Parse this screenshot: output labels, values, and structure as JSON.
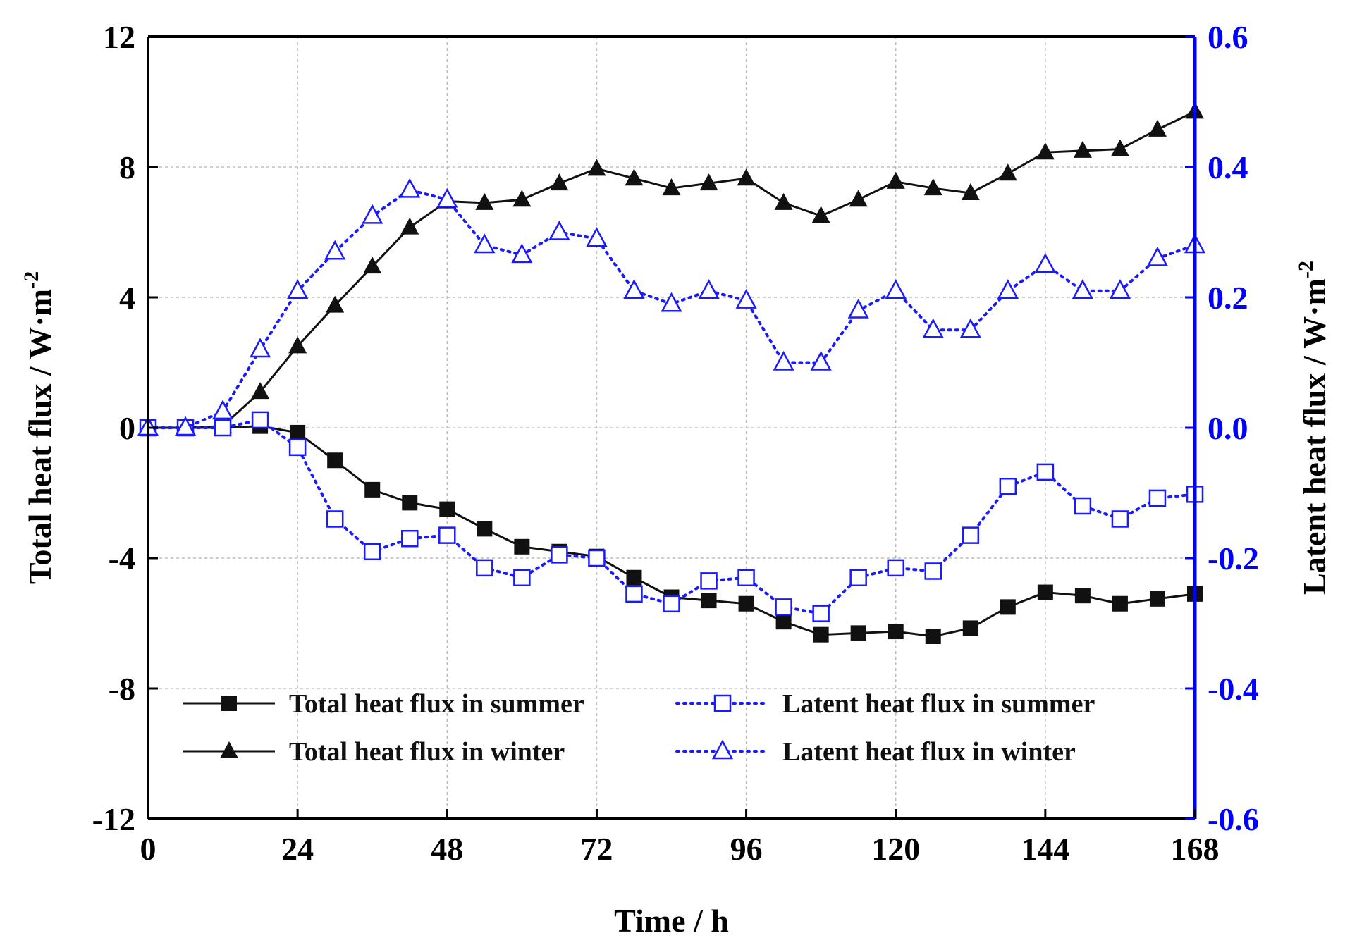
{
  "chart_data": {
    "type": "line",
    "xlabel": "Time / h",
    "ylabel_left": "Total heat flux / W·m",
    "ylabel_left_sup": "-2",
    "ylabel_right": "Latent heat flux / W·m",
    "ylabel_right_sup": "-2",
    "xlim": [
      0,
      168
    ],
    "ylim_left": [
      -12,
      12
    ],
    "ylim_right": [
      -0.6,
      0.6
    ],
    "x_ticks": [
      "0",
      "24",
      "48",
      "72",
      "96",
      "120",
      "144",
      "168"
    ],
    "y_ticks_left": [
      "12",
      "8",
      "4",
      "0",
      "-4",
      "-8",
      "-12"
    ],
    "y_ticks_right": [
      "0.6",
      "0.4",
      "0.2",
      "0.0",
      "-0.2",
      "-0.4",
      "-0.6"
    ],
    "grid": true,
    "legend_position": "bottom",
    "colors": {
      "total": "#111111",
      "latent": "#1a1aff",
      "right_axis": "#0000ff"
    },
    "series": [
      {
        "name": "Total heat flux in summer",
        "axis": "left",
        "marker": "filled-square",
        "style": "solid",
        "x": [
          0,
          6,
          12,
          18,
          24,
          30,
          36,
          42,
          48,
          54,
          60,
          66,
          72,
          78,
          84,
          90,
          96,
          102,
          108,
          114,
          120,
          126,
          132,
          138,
          144,
          150,
          156,
          162,
          168
        ],
        "y": [
          0,
          0,
          0,
          0.05,
          -0.15,
          -1.0,
          -1.9,
          -2.3,
          -2.5,
          -3.1,
          -3.65,
          -3.8,
          -3.95,
          -4.6,
          -5.2,
          -5.3,
          -5.4,
          -5.95,
          -6.35,
          -6.3,
          -6.25,
          -6.4,
          -6.15,
          -5.5,
          -5.05,
          -5.15,
          -5.4,
          -5.25,
          -5.1
        ]
      },
      {
        "name": "Total heat flux in winter",
        "axis": "left",
        "marker": "filled-triangle",
        "style": "solid",
        "x": [
          0,
          6,
          12,
          18,
          24,
          30,
          36,
          42,
          48,
          54,
          60,
          66,
          72,
          78,
          84,
          90,
          96,
          102,
          108,
          114,
          120,
          126,
          132,
          138,
          144,
          150,
          156,
          162,
          168
        ],
        "y": [
          0,
          0,
          0.05,
          1.1,
          2.5,
          3.75,
          4.95,
          6.15,
          6.95,
          6.9,
          7.0,
          7.5,
          7.95,
          7.65,
          7.35,
          7.5,
          7.65,
          6.9,
          6.5,
          7.0,
          7.55,
          7.35,
          7.2,
          7.8,
          8.45,
          8.5,
          8.55,
          9.15,
          9.7
        ]
      },
      {
        "name": "Latent heat flux in summer",
        "axis": "right",
        "marker": "open-square",
        "style": "dotted",
        "x": [
          0,
          6,
          12,
          18,
          24,
          30,
          36,
          42,
          48,
          54,
          60,
          66,
          72,
          78,
          84,
          90,
          96,
          102,
          108,
          114,
          120,
          126,
          132,
          138,
          144,
          150,
          156,
          162,
          168
        ],
        "y": [
          0,
          0,
          0,
          0.012,
          -0.03,
          -0.14,
          -0.19,
          -0.17,
          -0.165,
          -0.215,
          -0.23,
          -0.195,
          -0.2,
          -0.255,
          -0.27,
          -0.235,
          -0.23,
          -0.275,
          -0.285,
          -0.23,
          -0.215,
          -0.22,
          -0.165,
          -0.09,
          -0.068,
          -0.12,
          -0.14,
          -0.108,
          -0.102
        ]
      },
      {
        "name": "Latent heat flux in winter",
        "axis": "right",
        "marker": "open-triangle",
        "style": "dotted",
        "x": [
          0,
          6,
          12,
          18,
          24,
          30,
          36,
          42,
          48,
          54,
          60,
          66,
          72,
          78,
          84,
          90,
          96,
          102,
          108,
          114,
          120,
          126,
          132,
          138,
          144,
          150,
          156,
          162,
          168
        ],
        "y": [
          0,
          0,
          0.025,
          0.12,
          0.21,
          0.27,
          0.325,
          0.365,
          0.35,
          0.28,
          0.265,
          0.3,
          0.29,
          0.21,
          0.19,
          0.21,
          0.195,
          0.1,
          0.1,
          0.18,
          0.21,
          0.15,
          0.15,
          0.21,
          0.25,
          0.21,
          0.21,
          0.26,
          0.28
        ]
      }
    ]
  }
}
